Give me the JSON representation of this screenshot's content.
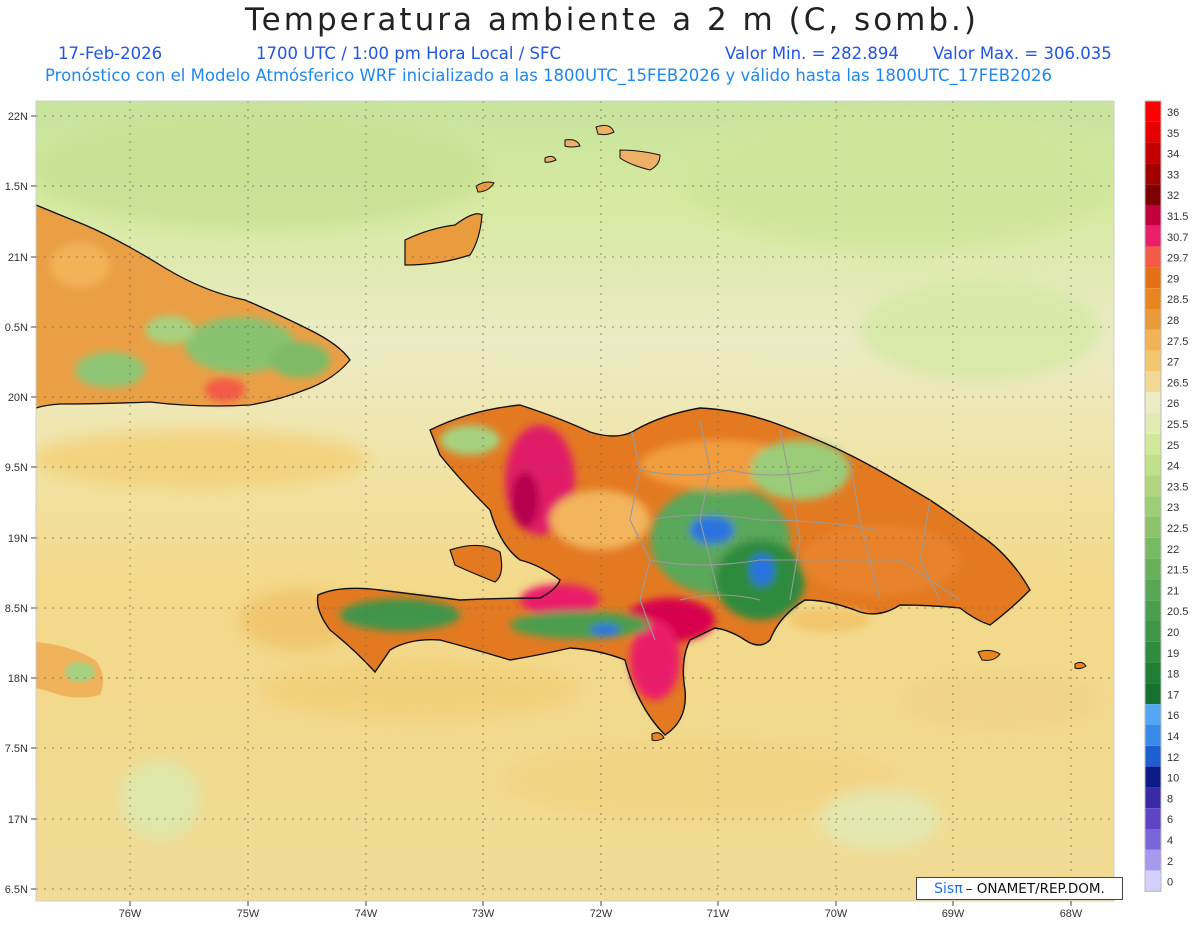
{
  "header": {
    "title": "Temperatura ambiente a 2 m (C, somb.)",
    "date": "17-Feb-2026",
    "time": "1700 UTC / 1:00 pm Hora Local / SFC",
    "min": "Valor Min. = 282.894",
    "max": "Valor Max. = 306.035",
    "model_line": "Pronóstico con el Modelo Atmósferico WRF inicializado a las 1800UTC_15FEB2026 y válido hasta las 1800UTC_17FEB2026"
  },
  "map": {
    "lon_labels": [
      "76W",
      "75W",
      "74W",
      "73W",
      "72W",
      "71W",
      "70W",
      "69W",
      "68W"
    ],
    "lat_labels": [
      "22N",
      "1.5N",
      "21N",
      "0.5N",
      "20N",
      "9.5N",
      "19N",
      "8.5N",
      "18N",
      "7.5N",
      "17N",
      "6.5N"
    ],
    "regions": [
      "Cuba (east)",
      "Great Inagua",
      "Turks and Caicos",
      "Haiti",
      "Dominican Republic",
      "Jamaica (east)"
    ]
  },
  "legend": {
    "levels": [
      "36",
      "35",
      "34",
      "33",
      "32",
      "31.5",
      "30.7",
      "29.7",
      "29",
      "28.5",
      "28",
      "27.5",
      "27",
      "26.5",
      "26",
      "25.5",
      "25",
      "24",
      "23.5",
      "23",
      "22.5",
      "22",
      "21.5",
      "21",
      "20.5",
      "20",
      "19",
      "18",
      "17",
      "16",
      "14",
      "12",
      "10",
      "8",
      "6",
      "4",
      "2",
      "0"
    ],
    "colors": [
      "#fe0000",
      "#e60000",
      "#c40000",
      "#a00000",
      "#7e0000",
      "#c2003c",
      "#ea1f6a",
      "#f45a46",
      "#e37013",
      "#e9851f",
      "#eb9a3a",
      "#f1b356",
      "#f2c66c",
      "#f1d995",
      "#ecebc5",
      "#e0ecb4",
      "#d0e89a",
      "#c0e08a",
      "#afd67f",
      "#9dcd75",
      "#8bc36c",
      "#78ba63",
      "#68b05a",
      "#58a754",
      "#4b9e4d",
      "#3f9548",
      "#2f8b3e",
      "#1f7e34",
      "#167030",
      "#53a7f2",
      "#3a8be8",
      "#1d5fd3",
      "#0c1a85",
      "#3a2aa6",
      "#5d45c6",
      "#7a66d9",
      "#a59af0",
      "#d3d1fb"
    ]
  },
  "credit": {
    "logo": "Sisπ",
    "text": "– ONAMET/REP.DOM."
  }
}
